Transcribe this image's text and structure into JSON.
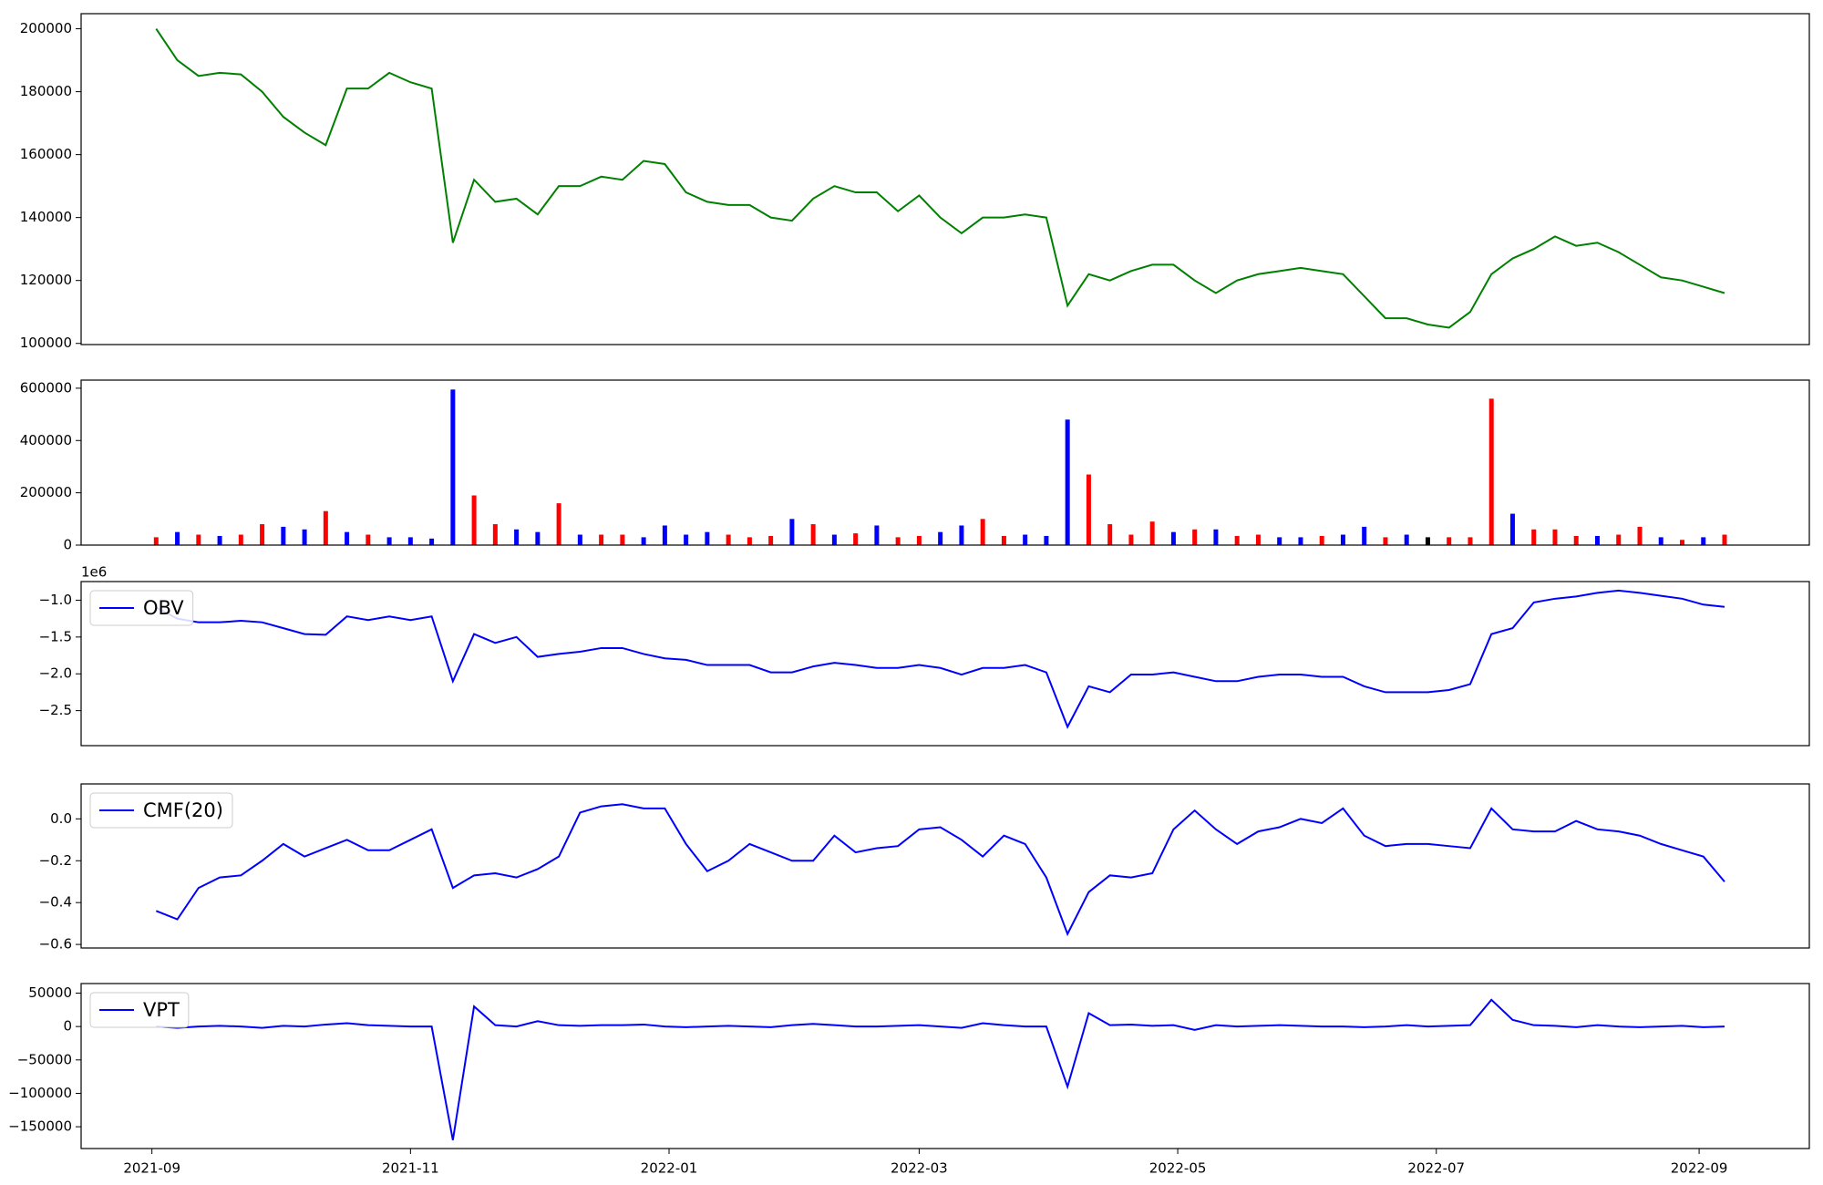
{
  "chart_data": [
    {
      "type": "line",
      "color": "green",
      "x": [
        18872,
        18877,
        18882,
        18887,
        18892,
        18897,
        18902,
        18907,
        18912,
        18917,
        18922,
        18927,
        18932,
        18937,
        18942,
        18947,
        18952,
        18957,
        18962,
        18967,
        18972,
        18977,
        18982,
        18987,
        18992,
        18997,
        19002,
        19007,
        19012,
        19017,
        19022,
        19027,
        19032,
        19037,
        19042,
        19047,
        19052,
        19057,
        19062,
        19067,
        19072,
        19077,
        19082,
        19087,
        19092,
        19097,
        19102,
        19107,
        19112,
        19117,
        19122,
        19127,
        19132,
        19137,
        19142,
        19147,
        19152,
        19157,
        19162,
        19167,
        19172,
        19177,
        19182,
        19187,
        19192,
        19197,
        19202,
        19207,
        19212,
        19217,
        19222,
        19227,
        19232,
        19237,
        19242
      ],
      "values": [
        200000,
        190000,
        185000,
        186000,
        185500,
        180000,
        172000,
        167000,
        163000,
        181000,
        181000,
        186000,
        183000,
        181000,
        132000,
        152000,
        145000,
        146000,
        141000,
        150000,
        150000,
        153000,
        152000,
        158000,
        157000,
        148000,
        145000,
        144000,
        144000,
        140000,
        139000,
        146000,
        150000,
        148000,
        148000,
        142000,
        147000,
        140000,
        135000,
        140000,
        140000,
        141000,
        140000,
        112000,
        122000,
        120000,
        123000,
        125000,
        125000,
        120000,
        116000,
        120000,
        122000,
        123000,
        124000,
        123000,
        122000,
        115000,
        108000,
        108000,
        106000,
        105000,
        110000,
        122000,
        127000,
        130000,
        134000,
        131000,
        132000,
        129000,
        125000,
        121000,
        120000,
        118000,
        116000
      ],
      "xlim": [
        18854.3,
        19262
      ],
      "ylim": [
        99630,
        204800
      ],
      "yticks": [
        100000,
        120000,
        140000,
        160000,
        180000,
        200000
      ]
    },
    {
      "type": "bar",
      "x": [
        18872,
        18877,
        18882,
        18887,
        18892,
        18897,
        18902,
        18907,
        18912,
        18917,
        18922,
        18927,
        18932,
        18937,
        18942,
        18947,
        18952,
        18957,
        18962,
        18967,
        18972,
        18977,
        18982,
        18987,
        18992,
        18997,
        19002,
        19007,
        19012,
        19017,
        19022,
        19027,
        19032,
        19037,
        19042,
        19047,
        19052,
        19057,
        19062,
        19067,
        19072,
        19077,
        19082,
        19087,
        19092,
        19097,
        19102,
        19107,
        19112,
        19117,
        19122,
        19127,
        19132,
        19137,
        19142,
        19147,
        19152,
        19157,
        19162,
        19167,
        19172,
        19177,
        19182,
        19187,
        19192,
        19197,
        19202,
        19207,
        19212,
        19217,
        19222,
        19227,
        19232,
        19237,
        19242
      ],
      "values": [
        30000,
        50000,
        40000,
        35000,
        40000,
        80000,
        70000,
        60000,
        130000,
        50000,
        40000,
        30000,
        30000,
        25000,
        595000,
        190000,
        80000,
        60000,
        50000,
        160000,
        40000,
        40000,
        40000,
        30000,
        75000,
        40000,
        50000,
        40000,
        30000,
        35000,
        100000,
        80000,
        40000,
        45000,
        75000,
        30000,
        35000,
        50000,
        75000,
        100000,
        35000,
        40000,
        35000,
        480000,
        270000,
        80000,
        40000,
        90000,
        50000,
        60000,
        60000,
        35000,
        40000,
        30000,
        30000,
        35000,
        40000,
        70000,
        30000,
        40000,
        30000,
        30000,
        30000,
        560000,
        120000,
        60000,
        60000,
        35000,
        35000,
        40000,
        70000,
        30000,
        20000,
        30000,
        40000
      ],
      "colors": [
        "red",
        "blue",
        "red",
        "blue",
        "red",
        "red",
        "blue",
        "blue",
        "red",
        "blue",
        "red",
        "blue",
        "blue",
        "blue",
        "blue",
        "red",
        "red",
        "blue",
        "blue",
        "red",
        "blue",
        "red",
        "red",
        "blue",
        "blue",
        "blue",
        "blue",
        "red",
        "red",
        "red",
        "blue",
        "red",
        "blue",
        "red",
        "blue",
        "red",
        "red",
        "blue",
        "blue",
        "red",
        "red",
        "blue",
        "blue",
        "blue",
        "red",
        "red",
        "red",
        "red",
        "blue",
        "red",
        "blue",
        "red",
        "red",
        "blue",
        "blue",
        "red",
        "blue",
        "blue",
        "red",
        "blue",
        "black",
        "red",
        "red",
        "red",
        "blue",
        "red",
        "red",
        "red",
        "blue",
        "red",
        "red",
        "blue",
        "red",
        "blue",
        "red"
      ],
      "xlim": [
        18854.3,
        19262
      ],
      "ylim": [
        0,
        631000
      ],
      "yticks": [
        0,
        200000,
        400000,
        600000
      ]
    },
    {
      "type": "line",
      "offset_text": "1e6",
      "legend_loc": "upper left",
      "x": [
        18872,
        18877,
        18882,
        18887,
        18892,
        18897,
        18902,
        18907,
        18912,
        18917,
        18922,
        18927,
        18932,
        18937,
        18942,
        18947,
        18952,
        18957,
        18962,
        18967,
        18972,
        18977,
        18982,
        18987,
        18992,
        18997,
        19002,
        19007,
        19012,
        19017,
        19022,
        19027,
        19032,
        19037,
        19042,
        19047,
        19052,
        19057,
        19062,
        19067,
        19072,
        19077,
        19082,
        19087,
        19092,
        19097,
        19102,
        19107,
        19112,
        19117,
        19122,
        19127,
        19132,
        19137,
        19142,
        19147,
        19152,
        19157,
        19162,
        19167,
        19172,
        19177,
        19182,
        19187,
        19192,
        19197,
        19202,
        19207,
        19212,
        19217,
        19222,
        19227,
        19232,
        19237,
        19242
      ],
      "series": [
        {
          "name": "OBV",
          "color": "blue",
          "values": [
            -1100000,
            -1250000,
            -1300000,
            -1300000,
            -1280000,
            -1300000,
            -1380000,
            -1460000,
            -1470000,
            -1220000,
            -1270000,
            -1220000,
            -1270000,
            -1220000,
            -2100000,
            -1460000,
            -1580000,
            -1500000,
            -1770000,
            -1730000,
            -1700000,
            -1650000,
            -1650000,
            -1730000,
            -1790000,
            -1810000,
            -1880000,
            -1880000,
            -1880000,
            -1980000,
            -1980000,
            -1900000,
            -1850000,
            -1880000,
            -1920000,
            -1920000,
            -1880000,
            -1920000,
            -2010000,
            -1920000,
            -1920000,
            -1880000,
            -1980000,
            -2720000,
            -2170000,
            -2250000,
            -2010000,
            -2010000,
            -1980000,
            -2040000,
            -2100000,
            -2100000,
            -2040000,
            -2010000,
            -2010000,
            -2040000,
            -2040000,
            -2170000,
            -2250000,
            -2250000,
            -2250000,
            -2220000,
            -2140000,
            -1460000,
            -1380000,
            -1030000,
            -980000,
            -950000,
            -900000,
            -870000,
            -900000,
            -940000,
            -980000,
            -1060000,
            -1090000
          ]
        }
      ],
      "xlim": [
        18854.3,
        19262
      ],
      "ylim": [
        -2975000,
        -747000
      ],
      "yticks": [
        {
          "value": -2500000,
          "label": "−2.5"
        },
        {
          "value": -2000000,
          "label": "−2.0"
        },
        {
          "value": -1500000,
          "label": "−1.5"
        },
        {
          "value": -1000000,
          "label": "−1.0"
        }
      ]
    },
    {
      "type": "line",
      "legend_loc": "upper left",
      "x": [
        18872,
        18877,
        18882,
        18887,
        18892,
        18897,
        18902,
        18907,
        18912,
        18917,
        18922,
        18927,
        18932,
        18937,
        18942,
        18947,
        18952,
        18957,
        18962,
        18967,
        18972,
        18977,
        18982,
        18987,
        18992,
        18997,
        19002,
        19007,
        19012,
        19017,
        19022,
        19027,
        19032,
        19037,
        19042,
        19047,
        19052,
        19057,
        19062,
        19067,
        19072,
        19077,
        19082,
        19087,
        19092,
        19097,
        19102,
        19107,
        19112,
        19117,
        19122,
        19127,
        19132,
        19137,
        19142,
        19147,
        19152,
        19157,
        19162,
        19167,
        19172,
        19177,
        19182,
        19187,
        19192,
        19197,
        19202,
        19207,
        19212,
        19217,
        19222,
        19227,
        19232,
        19237,
        19242
      ],
      "series": [
        {
          "name": "CMF(20)",
          "color": "blue",
          "values": [
            -0.44,
            -0.48,
            -0.33,
            -0.28,
            -0.27,
            -0.2,
            -0.12,
            -0.18,
            -0.14,
            -0.1,
            -0.15,
            -0.15,
            -0.1,
            -0.05,
            -0.33,
            -0.27,
            -0.26,
            -0.28,
            -0.24,
            -0.18,
            0.03,
            0.06,
            0.07,
            0.05,
            0.05,
            -0.12,
            -0.25,
            -0.2,
            -0.12,
            -0.16,
            -0.2,
            -0.2,
            -0.08,
            -0.16,
            -0.14,
            -0.13,
            -0.05,
            -0.04,
            -0.1,
            -0.18,
            -0.08,
            -0.12,
            -0.28,
            -0.55,
            -0.35,
            -0.27,
            -0.28,
            -0.26,
            -0.05,
            0.04,
            -0.05,
            -0.12,
            -0.06,
            -0.04,
            0.0,
            -0.02,
            0.05,
            -0.08,
            -0.13,
            -0.12,
            -0.12,
            -0.13,
            -0.14,
            0.05,
            -0.05,
            -0.06,
            -0.06,
            -0.01,
            -0.05,
            -0.06,
            -0.08,
            -0.12,
            -0.15,
            -0.18,
            -0.3
          ]
        }
      ],
      "xlim": [
        18854.3,
        19262
      ],
      "ylim": [
        -0.617,
        0.167
      ],
      "yticks": [
        {
          "value": -0.6,
          "label": "−0.6"
        },
        {
          "value": -0.4,
          "label": "−0.4"
        },
        {
          "value": -0.2,
          "label": "−0.2"
        },
        {
          "value": 0,
          "label": "0.0"
        }
      ]
    },
    {
      "type": "line",
      "legend_loc": "upper left",
      "x": [
        18872,
        18877,
        18882,
        18887,
        18892,
        18897,
        18902,
        18907,
        18912,
        18917,
        18922,
        18927,
        18932,
        18937,
        18942,
        18947,
        18952,
        18957,
        18962,
        18967,
        18972,
        18977,
        18982,
        18987,
        18992,
        18997,
        19002,
        19007,
        19012,
        19017,
        19022,
        19027,
        19032,
        19037,
        19042,
        19047,
        19052,
        19057,
        19062,
        19067,
        19072,
        19077,
        19082,
        19087,
        19092,
        19097,
        19102,
        19107,
        19112,
        19117,
        19122,
        19127,
        19132,
        19137,
        19142,
        19147,
        19152,
        19157,
        19162,
        19167,
        19172,
        19177,
        19182,
        19187,
        19192,
        19197,
        19202,
        19207,
        19212,
        19217,
        19222,
        19227,
        19232,
        19237,
        19242
      ],
      "series": [
        {
          "name": "VPT",
          "color": "blue",
          "values": [
            0,
            -2000,
            0,
            1000,
            0,
            -2000,
            1000,
            0,
            3000,
            5000,
            2000,
            1000,
            0,
            0,
            -170000,
            30000,
            2000,
            0,
            8000,
            2000,
            1000,
            2000,
            2000,
            3000,
            0,
            -1000,
            0,
            1000,
            0,
            -1000,
            2000,
            4000,
            2000,
            0,
            0,
            1000,
            2000,
            0,
            -2000,
            5000,
            2000,
            0,
            0,
            -90000,
            20000,
            2000,
            3000,
            1000,
            2000,
            -5000,
            2000,
            0,
            1000,
            2000,
            1000,
            0,
            0,
            -1000,
            0,
            2000,
            0,
            1000,
            2000,
            40000,
            10000,
            2000,
            1000,
            -1000,
            2000,
            0,
            -1000,
            0,
            1000,
            -1000,
            0
          ]
        }
      ],
      "xlim": [
        18854.3,
        19262
      ],
      "ylim": [
        -182600,
        64300
      ],
      "yticks": [
        {
          "value": -150000,
          "label": "−150000"
        },
        {
          "value": -100000,
          "label": "−100000"
        },
        {
          "value": -50000,
          "label": "−50000"
        },
        0,
        50000
      ],
      "xticks": [
        {
          "value": 18871,
          "label": "2021-09"
        },
        {
          "value": 18932,
          "label": "2021-11"
        },
        {
          "value": 18993,
          "label": "2022-01"
        },
        {
          "value": 19052,
          "label": "2022-03"
        },
        {
          "value": 19113,
          "label": "2022-05"
        },
        {
          "value": 19174,
          "label": "2022-07"
        },
        {
          "value": 19236,
          "label": "2022-09"
        }
      ]
    }
  ]
}
